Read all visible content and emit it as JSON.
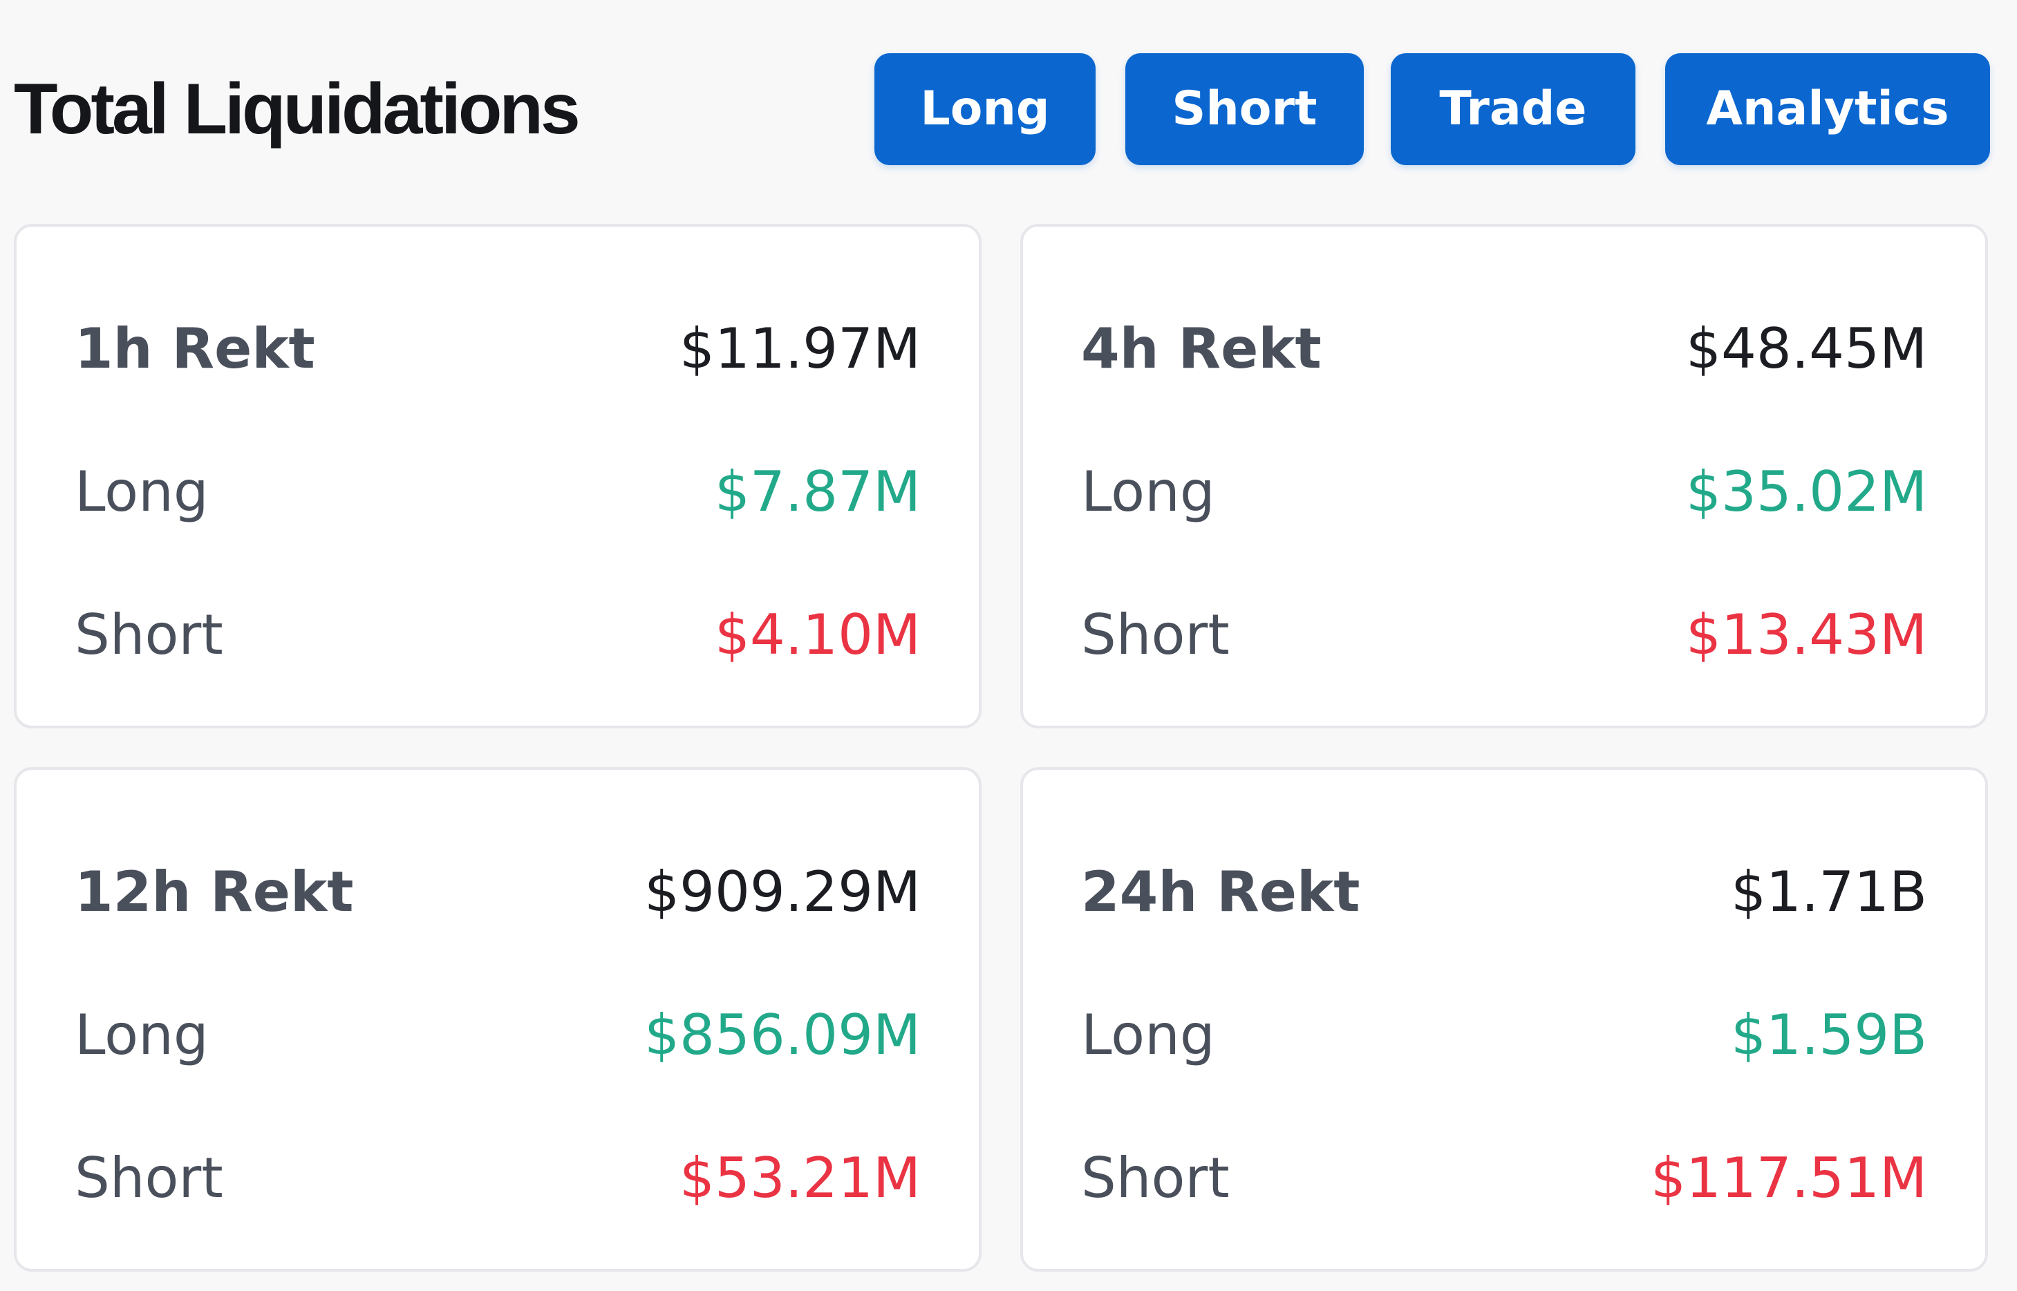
{
  "header": {
    "title": "Total Liquidations",
    "buttons": {
      "long": "Long",
      "short": "Short",
      "trade": "Trade",
      "analytics": "Analytics"
    }
  },
  "cards": [
    {
      "label": "1h Rekt",
      "total": "$11.97M",
      "long_label": "Long",
      "long": "$7.87M",
      "short_label": "Short",
      "short": "$4.10M"
    },
    {
      "label": "4h Rekt",
      "total": "$48.45M",
      "long_label": "Long",
      "long": "$35.02M",
      "short_label": "Short",
      "short": "$13.43M"
    },
    {
      "label": "12h Rekt",
      "total": "$909.29M",
      "long_label": "Long",
      "long": "$856.09M",
      "short_label": "Short",
      "short": "$53.21M"
    },
    {
      "label": "24h Rekt",
      "total": "$1.71B",
      "long_label": "Long",
      "long": "$1.59B",
      "short_label": "Short",
      "short": "$117.51M"
    }
  ],
  "colors": {
    "accent": "#0b67cf",
    "long": "#22a98a",
    "short": "#ea3343",
    "text": "#1b1d22",
    "label": "#4a505b",
    "background": "#f8f8f9"
  }
}
